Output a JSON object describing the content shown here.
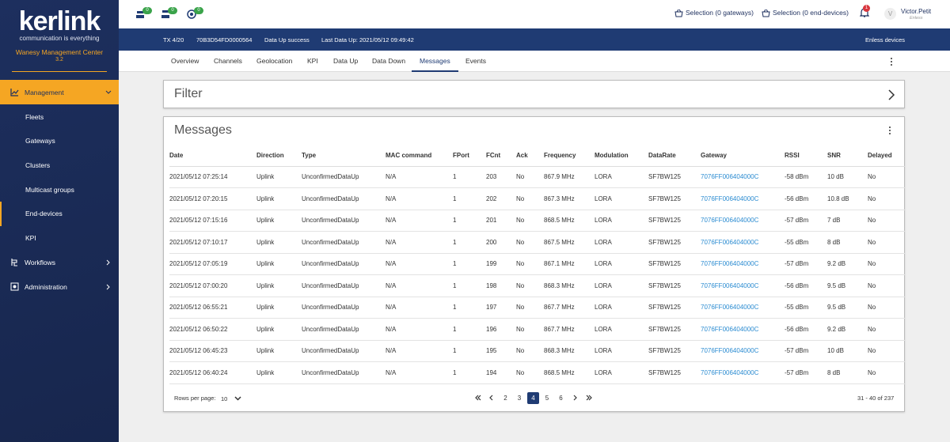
{
  "sidebar": {
    "logo": "kerlink",
    "tagline": "communication is everything",
    "app_name": "Wanesy Management Center",
    "version": "3.2",
    "menu": [
      {
        "label": "Management",
        "children": [
          "Fleets",
          "Gateways",
          "Clusters",
          "Multicast groups",
          "End-devices",
          "KPI"
        ]
      },
      {
        "label": "Workflows"
      },
      {
        "label": "Administration"
      }
    ]
  },
  "topbar": {
    "badges": [
      "0",
      "0",
      "0"
    ],
    "selection_gateways": "Selection (0 gateways)",
    "selection_end_devices": "Selection (0 end-devices)",
    "notifications": "1",
    "avatar": "V",
    "user": "Victor.Petit",
    "organization": "Enless"
  },
  "device_bar": {
    "tx": "TX 4/20",
    "dev_eui": "70B3D54FD0000564",
    "status": "Data Up success",
    "last_data_up": "Last Data Up: 2021/05/12 09:49:42",
    "fleet": "Enless devices"
  },
  "tabs": [
    "Overview",
    "Channels",
    "Geolocation",
    "KPI",
    "Data Up",
    "Data Down",
    "Messages",
    "Events"
  ],
  "filter": {
    "title": "Filter"
  },
  "messages": {
    "title": "Messages",
    "table": {
      "columns": [
        "Date",
        "Direction",
        "Type",
        "MAC command",
        "FPort",
        "FCnt",
        "Ack",
        "Frequency",
        "Modulation",
        "DataRate",
        "Gateway",
        "RSSI",
        "SNR",
        "Delayed"
      ],
      "rows": [
        [
          "2021/05/12 07:25:14",
          "Uplink",
          "UnconfirmedDataUp",
          "N/A",
          "1",
          "203",
          "No",
          "867.9 MHz",
          "LORA",
          "SF7BW125",
          "7076FF006404000C",
          "-58 dBm",
          "10 dB",
          "No"
        ],
        [
          "2021/05/12 07:20:15",
          "Uplink",
          "UnconfirmedDataUp",
          "N/A",
          "1",
          "202",
          "No",
          "867.3 MHz",
          "LORA",
          "SF7BW125",
          "7076FF006404000C",
          "-56 dBm",
          "10.8 dB",
          "No"
        ],
        [
          "2021/05/12 07:15:16",
          "Uplink",
          "UnconfirmedDataUp",
          "N/A",
          "1",
          "201",
          "No",
          "868.5 MHz",
          "LORA",
          "SF7BW125",
          "7076FF006404000C",
          "-57 dBm",
          "7 dB",
          "No"
        ],
        [
          "2021/05/12 07:10:17",
          "Uplink",
          "UnconfirmedDataUp",
          "N/A",
          "1",
          "200",
          "No",
          "867.5 MHz",
          "LORA",
          "SF7BW125",
          "7076FF006404000C",
          "-55 dBm",
          "8 dB",
          "No"
        ],
        [
          "2021/05/12 07:05:19",
          "Uplink",
          "UnconfirmedDataUp",
          "N/A",
          "1",
          "199",
          "No",
          "867.1 MHz",
          "LORA",
          "SF7BW125",
          "7076FF006404000C",
          "-57 dBm",
          "9.2 dB",
          "No"
        ],
        [
          "2021/05/12 07:00:20",
          "Uplink",
          "UnconfirmedDataUp",
          "N/A",
          "1",
          "198",
          "No",
          "868.3 MHz",
          "LORA",
          "SF7BW125",
          "7076FF006404000C",
          "-56 dBm",
          "9.5 dB",
          "No"
        ],
        [
          "2021/05/12 06:55:21",
          "Uplink",
          "UnconfirmedDataUp",
          "N/A",
          "1",
          "197",
          "No",
          "867.7 MHz",
          "LORA",
          "SF7BW125",
          "7076FF006404000C",
          "-55 dBm",
          "9.5 dB",
          "No"
        ],
        [
          "2021/05/12 06:50:22",
          "Uplink",
          "UnconfirmedDataUp",
          "N/A",
          "1",
          "196",
          "No",
          "867.7 MHz",
          "LORA",
          "SF7BW125",
          "7076FF006404000C",
          "-56 dBm",
          "9.2 dB",
          "No"
        ],
        [
          "2021/05/12 06:45:23",
          "Uplink",
          "UnconfirmedDataUp",
          "N/A",
          "1",
          "195",
          "No",
          "868.3 MHz",
          "LORA",
          "SF7BW125",
          "7076FF006404000C",
          "-57 dBm",
          "10 dB",
          "No"
        ],
        [
          "2021/05/12 06:40:24",
          "Uplink",
          "UnconfirmedDataUp",
          "N/A",
          "1",
          "194",
          "No",
          "868.5 MHz",
          "LORA",
          "SF7BW125",
          "7076FF006404000C",
          "-57 dBm",
          "8 dB",
          "No"
        ]
      ]
    },
    "pagination": {
      "rows_per_page_label": "Rows per page:",
      "rows_per_page": "10",
      "pages": [
        "2",
        "3",
        "4",
        "5",
        "6"
      ],
      "range": "31 - 40 of 237"
    }
  }
}
